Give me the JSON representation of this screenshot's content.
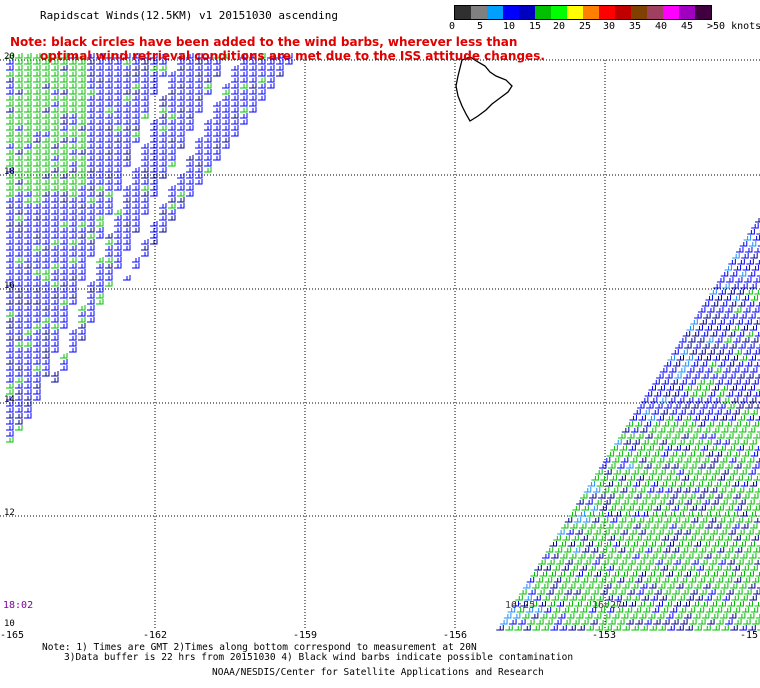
{
  "title": "Rapidscat Winds(12.5KM) v1 20151030 ascending",
  "note_red": [
    "Note: black circles have been added to the wind barbs, wherever less than",
    "optimal wind retrieval conditions are met due to the ISS attitude changes."
  ],
  "legend": {
    "colors": [
      "#303030",
      "#808080",
      "#00a0ff",
      "#0000ff",
      "#0000c0",
      "#00c000",
      "#00ff00",
      "#ffff00",
      "#ff8000",
      "#ff0000",
      "#c00000",
      "#804000",
      "#a04060",
      "#ff00ff",
      "#a000c0",
      "#400040"
    ],
    "labels": [
      "0",
      "5",
      "10",
      "15",
      "20",
      "25",
      "30",
      "35",
      "40",
      "45",
      ">50 knots"
    ]
  },
  "lat_labels": [
    "20",
    "18",
    "16",
    "14",
    "12",
    "10"
  ],
  "lon_labels": [
    "-165",
    "-162",
    "-159",
    "-156",
    "-153",
    "-15"
  ],
  "time_left": "18:02",
  "time_bottom": [
    "16:25",
    "16:27"
  ],
  "footnote_line1": "Note: 1) Times are GMT 2)Times along bottom correspond to measurement at 20N",
  "footnote_line2": "3)Data buffer is 22 hrs from 20151030 4) Black wind barbs indicate possible contamination",
  "credit": "NOAA/NESDIS/Center for Satellite Applications and Research",
  "colors": {
    "blue_barb": "#0000ff",
    "navy_barb": "#000090",
    "green_barb": "#00c000",
    "light_blue_barb": "#1e90ff",
    "note_red": "#e00000",
    "time_purple": "#8000a0"
  }
}
